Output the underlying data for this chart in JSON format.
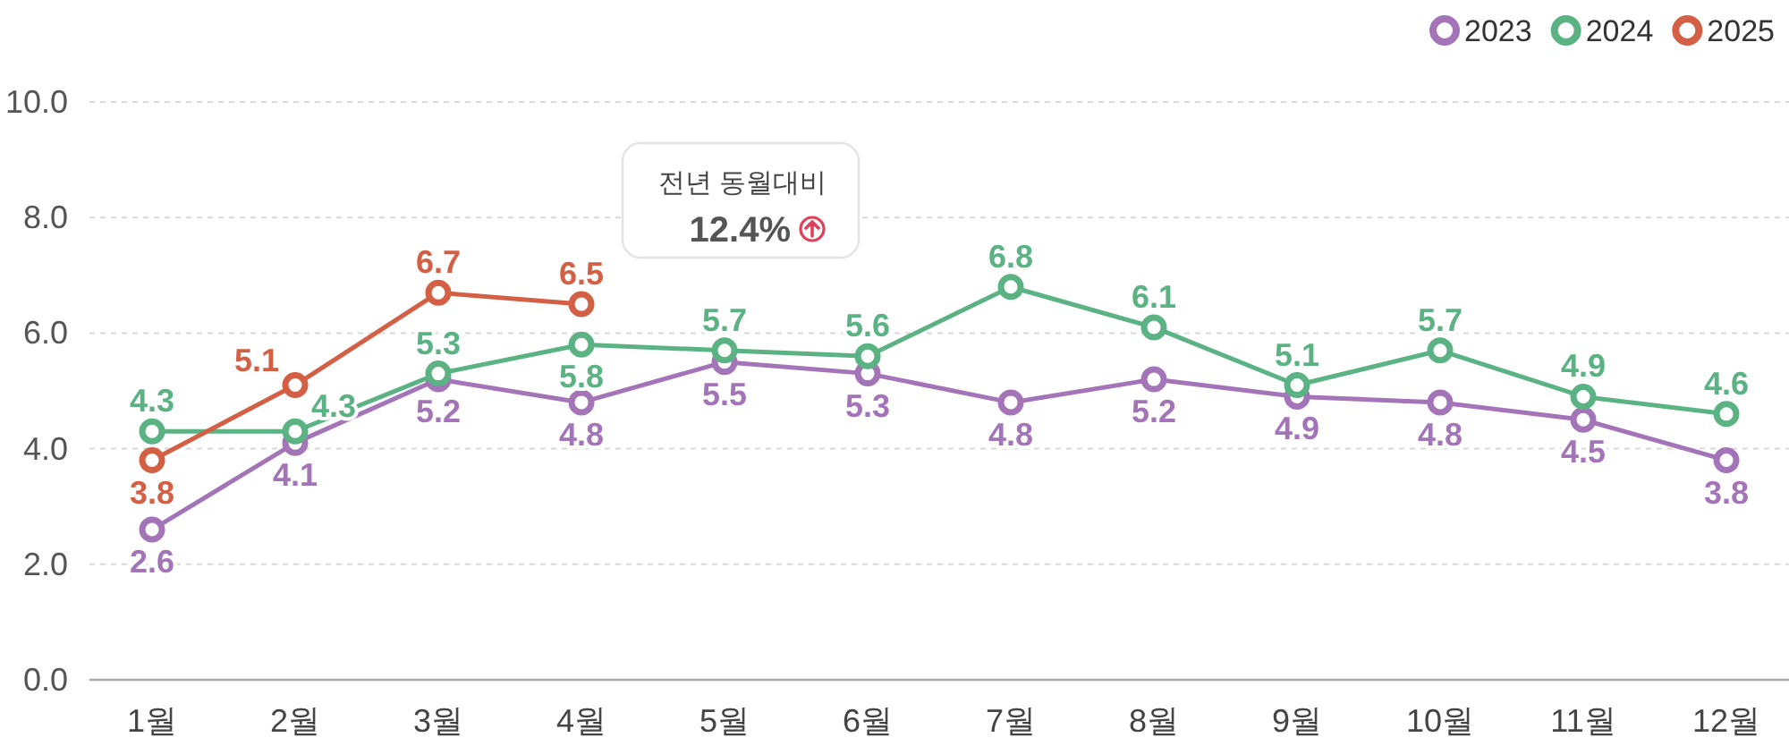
{
  "chart_data": {
    "type": "line",
    "categories": [
      "1월",
      "2월",
      "3월",
      "4월",
      "5월",
      "6월",
      "7월",
      "8월",
      "9월",
      "10월",
      "11월",
      "12월"
    ],
    "series": [
      {
        "name": "2023",
        "color": "#a474b8",
        "values": [
          2.6,
          4.1,
          5.2,
          4.8,
          5.5,
          5.3,
          4.8,
          5.2,
          4.9,
          4.8,
          4.5,
          3.8
        ]
      },
      {
        "name": "2024",
        "color": "#5bb384",
        "values": [
          4.3,
          4.3,
          5.3,
          5.8,
          5.7,
          5.6,
          6.8,
          6.1,
          5.1,
          5.7,
          4.9,
          4.6
        ]
      },
      {
        "name": "2025",
        "color": "#d35f44",
        "values": [
          3.8,
          5.1,
          6.7,
          6.5,
          null,
          null,
          null,
          null,
          null,
          null,
          null,
          null
        ]
      }
    ],
    "ylim": [
      0,
      10
    ],
    "yticks": [
      {
        "value": 0,
        "label": "0.0"
      },
      {
        "value": 2,
        "label": "2.0"
      },
      {
        "value": 4,
        "label": "4.0"
      },
      {
        "value": 6,
        "label": "6.0"
      },
      {
        "value": 8,
        "label": "8.0"
      },
      {
        "value": 10,
        "label": "10.0"
      }
    ],
    "grid": "y",
    "legend": "top right",
    "marker": "circle",
    "data_labels": true,
    "annotations": [
      "전년 동월대비",
      "12.4%"
    ]
  }
}
